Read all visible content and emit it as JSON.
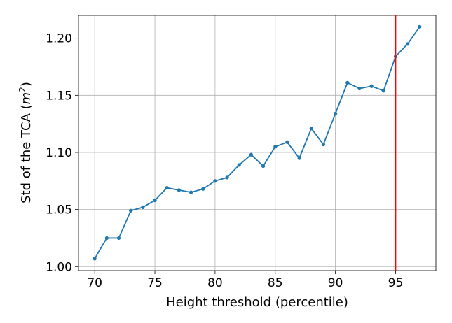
{
  "chart_data": {
    "type": "line",
    "xlabel": "Height threshold (percentile)",
    "ylabel": "Std of the TCA (m²)",
    "ylabel_text": "Std of the TCA (",
    "ylabel_var": "m",
    "ylabel_sup": "2",
    "ylabel_close": ")",
    "xlim": [
      68.65,
      98.35
    ],
    "ylim": [
      0.9965,
      1.22
    ],
    "xticks": [
      70,
      75,
      80,
      85,
      90,
      95
    ],
    "xtick_labels": [
      "70",
      "75",
      "80",
      "85",
      "90",
      "95"
    ],
    "yticks": [
      1.0,
      1.05,
      1.1,
      1.15,
      1.2
    ],
    "ytick_labels": [
      "1.00",
      "1.05",
      "1.10",
      "1.15",
      "1.20"
    ],
    "grid": true,
    "series": [
      {
        "color": "#1f77b4",
        "marker": "circle",
        "x": [
          70,
          71,
          72,
          73,
          74,
          75,
          76,
          77,
          78,
          79,
          80,
          81,
          82,
          83,
          84,
          85,
          86,
          87,
          88,
          89,
          90,
          91,
          92,
          93,
          94,
          95,
          96,
          97
        ],
        "y": [
          1.007,
          1.025,
          1.025,
          1.049,
          1.052,
          1.058,
          1.069,
          1.067,
          1.065,
          1.068,
          1.075,
          1.078,
          1.089,
          1.098,
          1.088,
          1.105,
          1.109,
          1.095,
          1.121,
          1.107,
          1.134,
          1.161,
          1.156,
          1.158,
          1.154,
          1.184,
          1.195,
          1.21
        ]
      }
    ],
    "vline": {
      "x": 95,
      "color": "#ff0000"
    }
  }
}
